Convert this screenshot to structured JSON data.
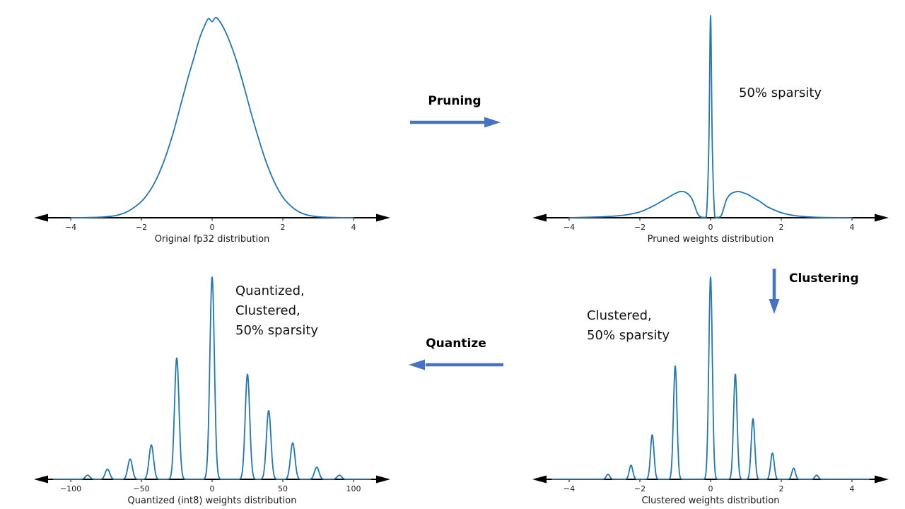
{
  "colors": {
    "curve": "#1f77b4",
    "arrow": "#4472c4",
    "axis": "#000000",
    "tick_text": "#1a1a1a"
  },
  "flow": {
    "arrows": [
      {
        "label": "Pruning",
        "direction": "right"
      },
      {
        "label": "Clustering",
        "direction": "down"
      },
      {
        "label": "Quantize",
        "direction": "left"
      }
    ]
  },
  "chart_data": [
    {
      "type": "line",
      "position": "top-left",
      "title": "Original fp32 distribution",
      "xlabel": "Original fp32 distribution",
      "x_ticks": [
        {
          "v": -4,
          "label": "−4"
        },
        {
          "v": -2,
          "label": "−2"
        },
        {
          "v": 0,
          "label": "0"
        },
        {
          "v": 2,
          "label": "2"
        },
        {
          "v": 4,
          "label": "4"
        }
      ],
      "xlim": [
        -4.8,
        4.8
      ],
      "ylim": [
        0,
        1
      ],
      "grid": false,
      "points": {
        "x": [
          -4,
          -3.5,
          -3,
          -2.7,
          -2.4,
          -2.1,
          -1.9,
          -1.7,
          -1.5,
          -1.3,
          -1.1,
          -0.9,
          -0.7,
          -0.5,
          -0.35,
          -0.2,
          -0.1,
          0,
          0.1,
          0.2,
          0.35,
          0.5,
          0.7,
          0.9,
          1.1,
          1.3,
          1.5,
          1.7,
          1.9,
          2.1,
          2.4,
          2.7,
          3,
          3.5,
          4
        ],
        "y": [
          0,
          0.001,
          0.005,
          0.012,
          0.03,
          0.065,
          0.1,
          0.15,
          0.22,
          0.31,
          0.42,
          0.55,
          0.68,
          0.8,
          0.89,
          0.955,
          0.985,
          0.97,
          0.99,
          0.975,
          0.93,
          0.87,
          0.77,
          0.65,
          0.52,
          0.4,
          0.29,
          0.2,
          0.13,
          0.08,
          0.035,
          0.013,
          0.005,
          0.001,
          0
        ]
      },
      "annotation": []
    },
    {
      "type": "line",
      "position": "top-right",
      "title": "Pruned weights distribution",
      "xlabel": "Pruned weights distribution",
      "x_ticks": [
        {
          "v": -4,
          "label": "−4"
        },
        {
          "v": -2,
          "label": "−2"
        },
        {
          "v": 0,
          "label": "0"
        },
        {
          "v": 2,
          "label": "2"
        },
        {
          "v": 4,
          "label": "4"
        }
      ],
      "xlim": [
        -4.8,
        4.8
      ],
      "ylim": [
        0,
        1
      ],
      "grid": false,
      "points": {
        "x": [
          -4,
          -3.2,
          -2.6,
          -2.2,
          -1.9,
          -1.6,
          -1.35,
          -1.15,
          -1.0,
          -0.85,
          -0.7,
          -0.55,
          -0.45,
          -0.38,
          -0.3,
          -0.22,
          -0.12,
          -0.05,
          0,
          0.05,
          0.12,
          0.22,
          0.3,
          0.36,
          0.45,
          0.55,
          0.65,
          0.78,
          0.9,
          1.05,
          1.2,
          1.4,
          1.6,
          1.85,
          2.1,
          2.4,
          2.8,
          3.2,
          4
        ],
        "y": [
          0,
          0.004,
          0.01,
          0.02,
          0.035,
          0.06,
          0.085,
          0.105,
          0.12,
          0.13,
          0.125,
          0.1,
          0.06,
          0.025,
          0.006,
          0.002,
          0.004,
          0.35,
          1.0,
          0.35,
          0.004,
          0.002,
          0.01,
          0.04,
          0.09,
          0.115,
          0.125,
          0.13,
          0.125,
          0.115,
          0.1,
          0.08,
          0.055,
          0.035,
          0.02,
          0.01,
          0.004,
          0.001,
          0
        ]
      },
      "annotation": [
        "50% sparsity"
      ]
    },
    {
      "type": "spikes",
      "position": "bottom-right",
      "title": "Clustered weights distribution",
      "xlabel": "Clustered weights distribution",
      "x_ticks": [
        {
          "v": -4,
          "label": "−4"
        },
        {
          "v": -2,
          "label": "−2"
        },
        {
          "v": 0,
          "label": "0"
        },
        {
          "v": 2,
          "label": "2"
        },
        {
          "v": 4,
          "label": "4"
        }
      ],
      "xlim": [
        -4.8,
        4.8
      ],
      "ylim": [
        0,
        1
      ],
      "grid": false,
      "sigma": 0.05,
      "spikes": [
        {
          "x": -2.9,
          "h": 0.025
        },
        {
          "x": -2.25,
          "h": 0.07
        },
        {
          "x": -1.65,
          "h": 0.22
        },
        {
          "x": -1.0,
          "h": 0.56
        },
        {
          "x": 0,
          "h": 1.0
        },
        {
          "x": 0.7,
          "h": 0.52
        },
        {
          "x": 1.2,
          "h": 0.3
        },
        {
          "x": 1.75,
          "h": 0.13
        },
        {
          "x": 2.35,
          "h": 0.055
        },
        {
          "x": 3.0,
          "h": 0.02
        }
      ],
      "annotation": [
        "Clustered,",
        "50% sparsity"
      ]
    },
    {
      "type": "spikes",
      "position": "bottom-left",
      "title": "Quantized (int8) weights distribution",
      "xlabel": "Quantized (int8) weights distribution",
      "x_ticks": [
        {
          "v": -100,
          "label": "−100"
        },
        {
          "v": -50,
          "label": "−50"
        },
        {
          "v": 0,
          "label": "0"
        },
        {
          "v": 50,
          "label": "50"
        },
        {
          "v": 100,
          "label": "100"
        }
      ],
      "xlim": [
        -120,
        120
      ],
      "ylim": [
        0,
        1
      ],
      "grid": false,
      "sigma": 1.6,
      "spikes": [
        {
          "x": -88,
          "h": 0.02
        },
        {
          "x": -74,
          "h": 0.05
        },
        {
          "x": -58,
          "h": 0.1
        },
        {
          "x": -43,
          "h": 0.17
        },
        {
          "x": -25,
          "h": 0.6
        },
        {
          "x": 0,
          "h": 1.0
        },
        {
          "x": 25,
          "h": 0.52
        },
        {
          "x": 40,
          "h": 0.34
        },
        {
          "x": 57,
          "h": 0.18
        },
        {
          "x": 74,
          "h": 0.06
        },
        {
          "x": 90,
          "h": 0.02
        }
      ],
      "annotation": [
        "Quantized,",
        "Clustered,",
        "50% sparsity"
      ]
    }
  ]
}
